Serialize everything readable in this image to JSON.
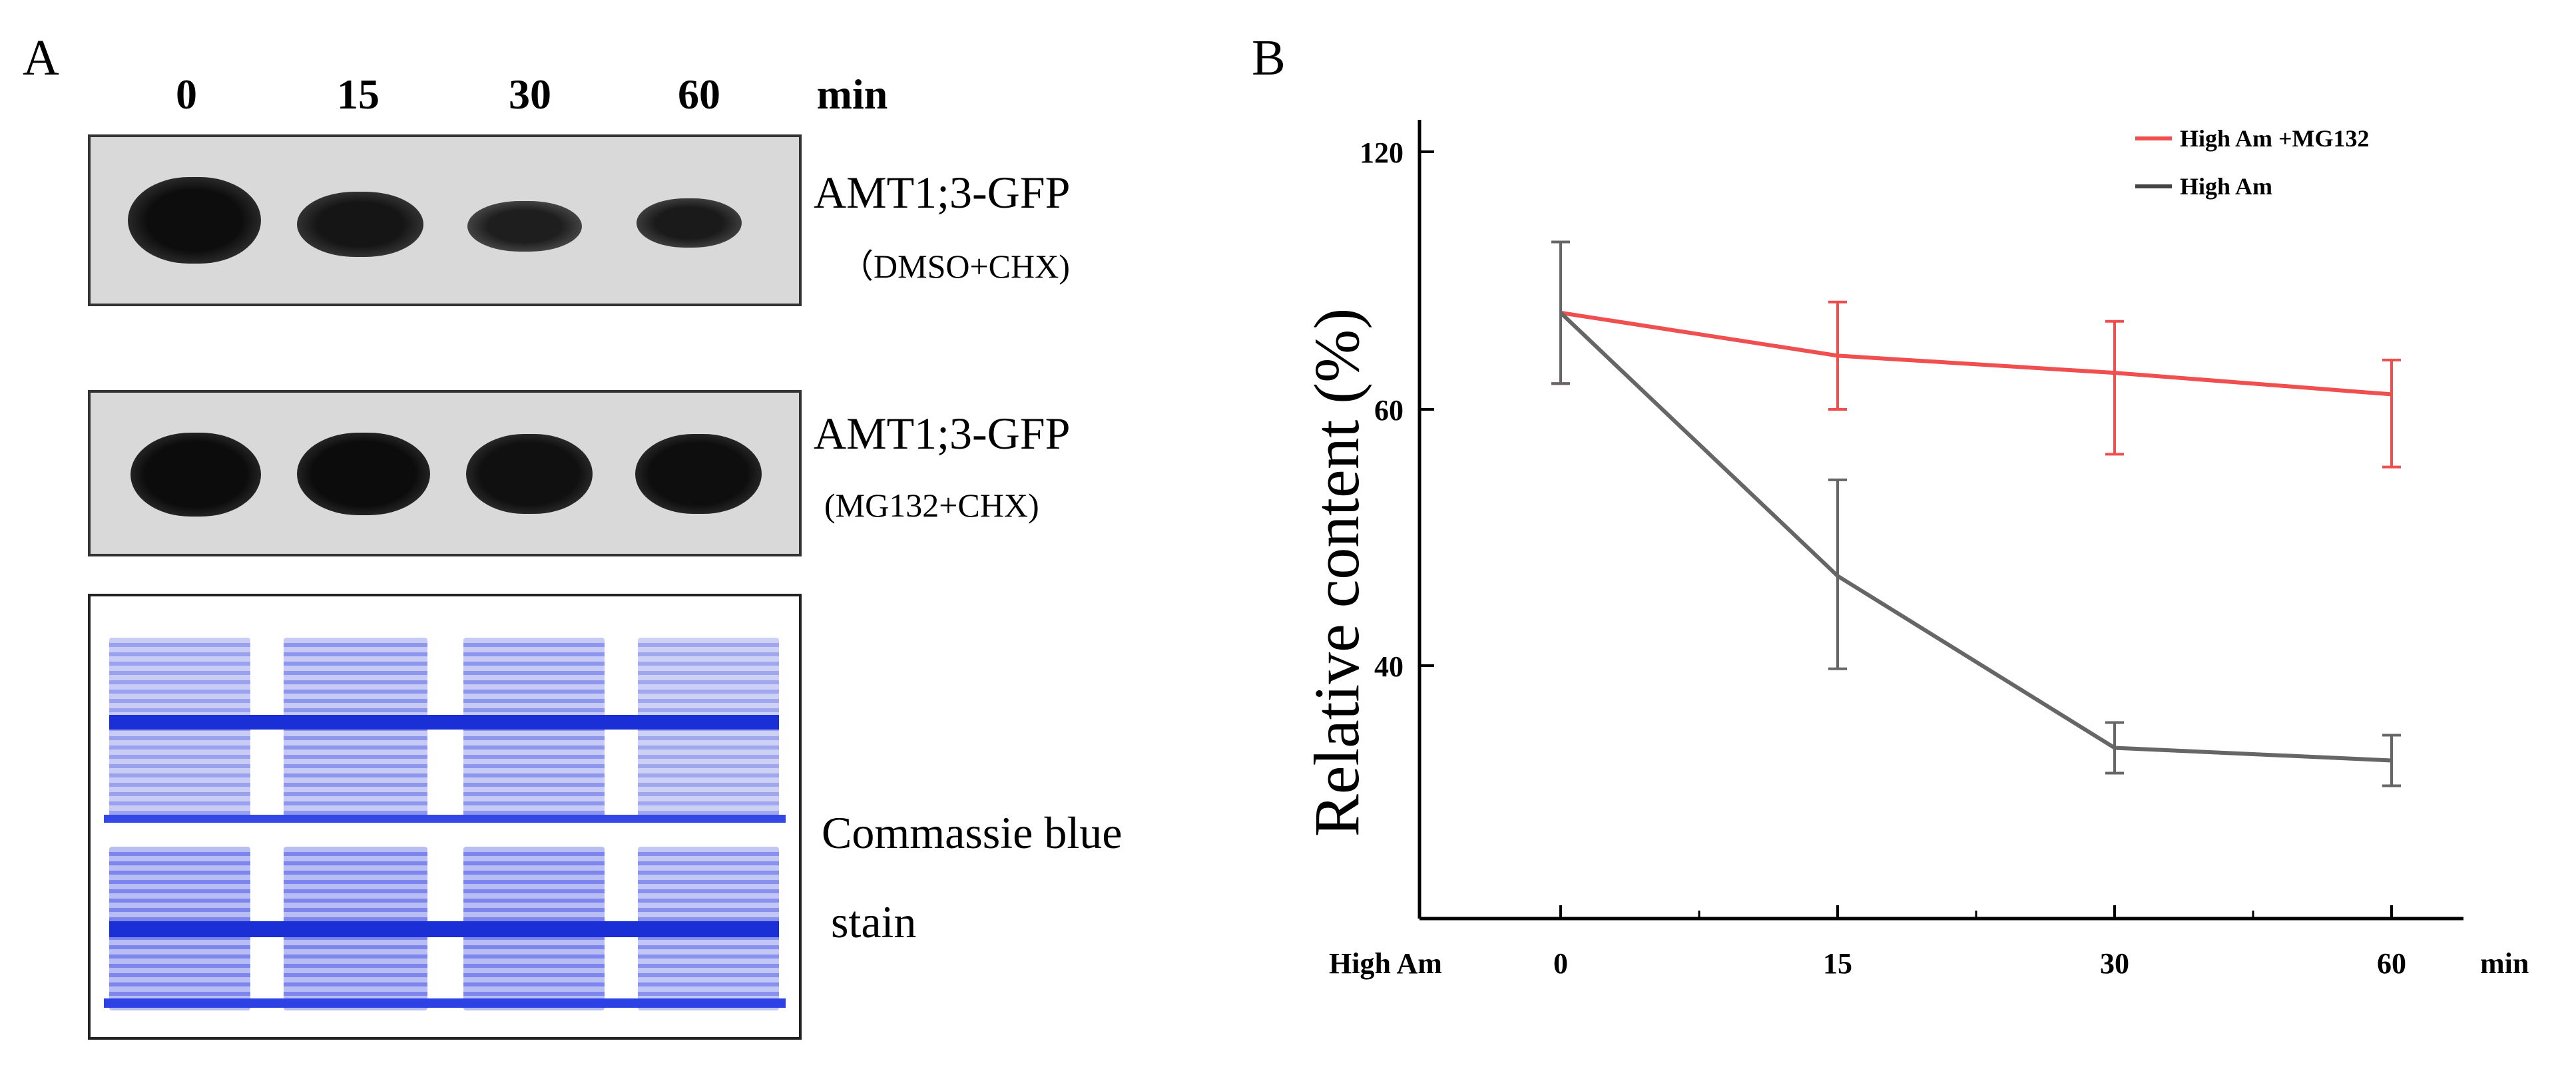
{
  "panel_a": {
    "label": "A",
    "lanes": [
      "0",
      "15",
      "30",
      "60"
    ],
    "time_unit": "min",
    "blot1": {
      "protein": "AMT1;3-GFP",
      "treatment": "（DMSO+CHX)"
    },
    "blot2": {
      "protein": "AMT1;3-GFP",
      "treatment": "(MG132+CHX)"
    },
    "stain": {
      "line1": "Commassie blue",
      "line2": "stain"
    }
  },
  "panel_b": {
    "label": "B"
  },
  "chart_data": {
    "type": "line",
    "ylabel": "Relative content (%)",
    "xlabel_left": "High Am",
    "xlabel_right": "min",
    "x": [
      0,
      15,
      30,
      60
    ],
    "x_tick_labels": [
      "0",
      "15",
      "30",
      "60"
    ],
    "y_ticks": [
      40,
      60,
      120
    ],
    "series": [
      {
        "name": "High Am +MG132",
        "color": "#ef4f4f",
        "values": [
          82.5,
          72.5,
          68.5,
          63.5
        ],
        "errors": [
          16.5,
          12.5,
          12,
          8
        ]
      },
      {
        "name": "High Am",
        "color": "#666666",
        "values": [
          82.5,
          47,
          27,
          25
        ],
        "errors": [
          16.5,
          7.5,
          4,
          4
        ]
      }
    ]
  }
}
